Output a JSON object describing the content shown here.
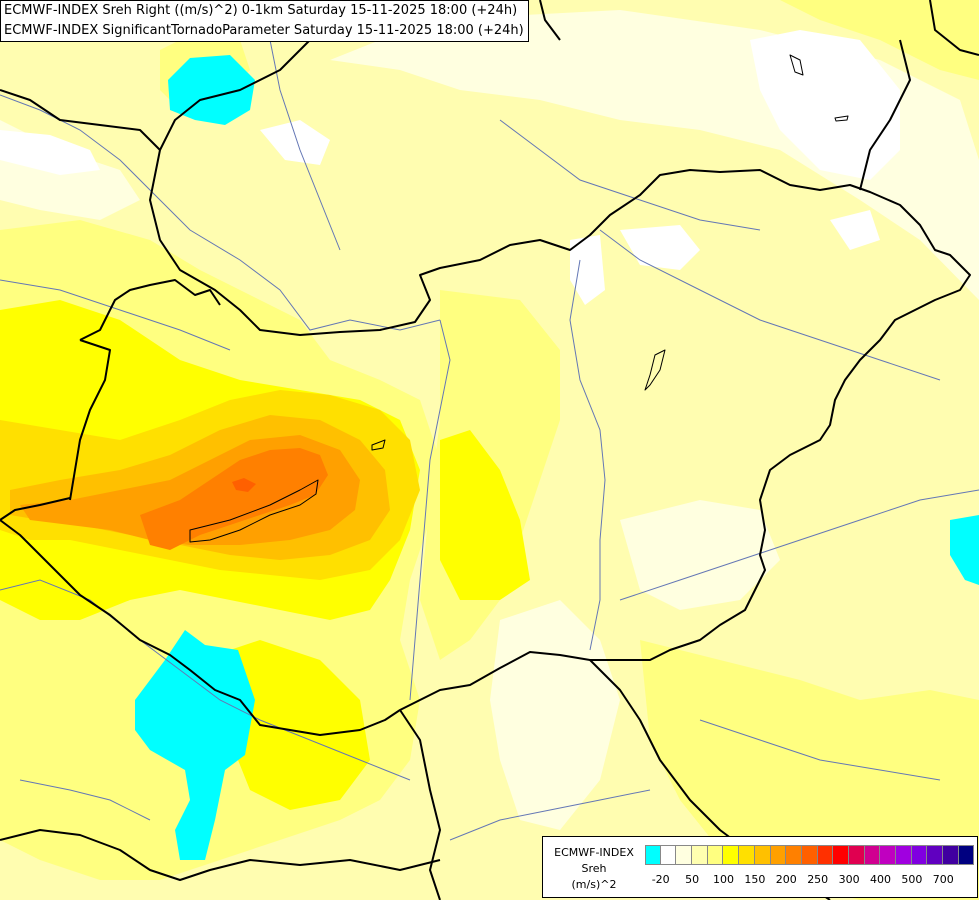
{
  "header": {
    "line1": "ECMWF-INDEX Sreh Right ((m/s)^2) 0-1km Saturday 15-11-2025 18:00 (+24h)",
    "line2": "ECMWF-INDEX SignificantTornadoParameter Saturday 15-11-2025 18:00 (+24h)"
  },
  "legend": {
    "title_lines": [
      "ECMWF-INDEX",
      "Sreh",
      "(m/s)^2"
    ],
    "colors": [
      "#00ffff",
      "#ffffff",
      "#ffffe0",
      "#ffffb0",
      "#ffff80",
      "#ffff00",
      "#ffe000",
      "#ffc000",
      "#ffa000",
      "#ff8000",
      "#ff6000",
      "#ff3000",
      "#ff0000",
      "#e00050",
      "#d00090",
      "#c000c0",
      "#a000e0",
      "#8000e0",
      "#6000c0",
      "#4000a0",
      "#000080"
    ],
    "ticks": [
      {
        "label": "-20",
        "index": 1
      },
      {
        "label": "50",
        "index": 3
      },
      {
        "label": "100",
        "index": 5
      },
      {
        "label": "150",
        "index": 7
      },
      {
        "label": "200",
        "index": 9
      },
      {
        "label": "250",
        "index": 11
      },
      {
        "label": "300",
        "index": 13
      },
      {
        "label": "400",
        "index": 15
      },
      {
        "label": "500",
        "index": 17
      },
      {
        "label": "700",
        "index": 19
      }
    ]
  }
}
